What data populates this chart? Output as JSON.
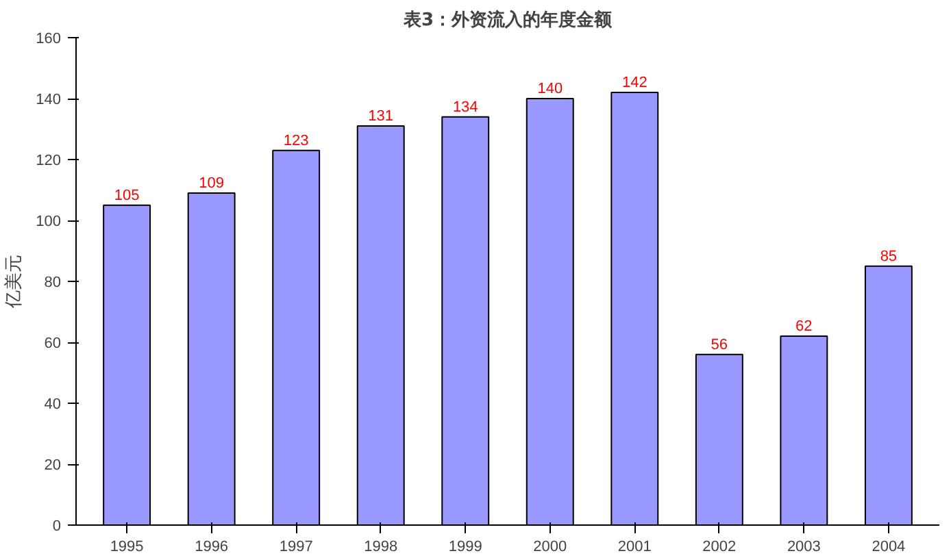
{
  "chart_data": {
    "type": "bar",
    "title": "表3：外资流入的年度金额",
    "ylabel": "亿美元",
    "categories": [
      "1995",
      "1996",
      "1997",
      "1998",
      "1999",
      "2000",
      "2001",
      "2002",
      "2003",
      "2004"
    ],
    "values": [
      105,
      109,
      123,
      131,
      134,
      140,
      142,
      56,
      62,
      85
    ],
    "color": "#9999ff",
    "ylim": [
      0,
      160
    ],
    "yticks": [
      0,
      20,
      40,
      60,
      80,
      100,
      120,
      140,
      160
    ],
    "grid": false,
    "data_labels": true
  }
}
